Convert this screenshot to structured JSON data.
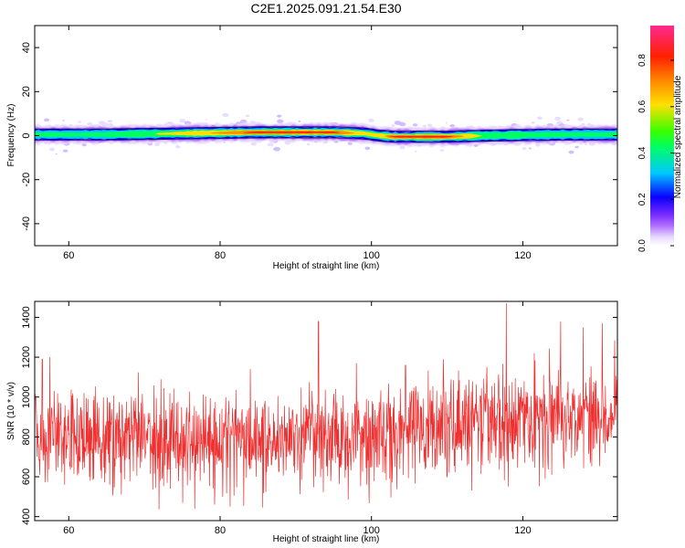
{
  "title": "C2E1.2025.091.21.54.E30",
  "colors": {
    "snr_line": "#ef3030",
    "background": "#ffffff",
    "axes": "#000000",
    "colormap": [
      "#ffffff",
      "#e6d8ff",
      "#b070ff",
      "#7a2cff",
      "#0a00ff",
      "#00c8ff",
      "#00ff60",
      "#38ff00",
      "#ffe000",
      "#ff9000",
      "#ff2000",
      "#ff2a90"
    ]
  },
  "chart_data": [
    {
      "type": "heatmap",
      "title": "C2E1.2025.091.21.54.E30",
      "xlabel": "Height of straight line (km)",
      "ylabel": "Frequency (Hz)",
      "xlim": [
        55.5,
        132.5
      ],
      "ylim": [
        -50,
        50
      ],
      "xticks": [
        60,
        80,
        100,
        120
      ],
      "yticks": [
        40,
        20,
        0,
        -20,
        -40
      ],
      "grid": false,
      "ridge": {
        "x": [
          55.5,
          65,
          75,
          85,
          95,
          99,
          101,
          103,
          110,
          115,
          125,
          132.5
        ],
        "center_hz": [
          0.5,
          0.5,
          1.0,
          1.5,
          1.5,
          1.0,
          0.0,
          -0.5,
          -0.5,
          0.0,
          0.5,
          0.5
        ],
        "amplitude": [
          0.45,
          0.45,
          0.6,
          0.85,
          0.85,
          0.6,
          0.6,
          0.85,
          0.85,
          0.5,
          0.45,
          0.45
        ]
      },
      "colorbar": {
        "label": "Normalized spectral amplitude",
        "range": [
          0,
          0.95
        ],
        "ticks": [
          0.0,
          0.2,
          0.4,
          0.6,
          0.8
        ],
        "tick_labels": [
          "0.0",
          "0.2",
          "0.4",
          "0.6",
          "0.8"
        ]
      }
    },
    {
      "type": "line",
      "xlabel": "Height of straight line (km)",
      "ylabel": "SNR (10 * v/v)",
      "xlim": [
        55.5,
        132.5
      ],
      "ylim": [
        380,
        1480
      ],
      "xticks": [
        60,
        80,
        100,
        120
      ],
      "yticks": [
        400,
        600,
        800,
        1000,
        1200,
        1400
      ],
      "grid": false,
      "series": [
        {
          "x": [
            55.5,
            60,
            65,
            70,
            75,
            80,
            85,
            90,
            95,
            100,
            105,
            110,
            115,
            120,
            125,
            130,
            132.5
          ],
          "mean": [
            800,
            800,
            800,
            800,
            800,
            795,
            800,
            800,
            810,
            820,
            835,
            855,
            870,
            885,
            905,
            930,
            950
          ],
          "low_envelope": [
            560,
            560,
            560,
            560,
            560,
            560,
            560,
            570,
            575,
            585,
            600,
            620,
            640,
            660,
            690,
            720,
            740
          ],
          "high_envelope": [
            1080,
            1080,
            1080,
            1080,
            1080,
            1080,
            1080,
            1085,
            1090,
            1110,
            1120,
            1140,
            1160,
            1180,
            1200,
            1220,
            1240
          ],
          "peaks": [
            [
              56.5,
              1190
            ],
            [
              57.5,
              1200
            ],
            [
              84,
              1140
            ],
            [
              93,
              1380
            ],
            [
              98,
              1170
            ],
            [
              104.5,
              1160
            ],
            [
              109.5,
              1190
            ],
            [
              117.8,
              1470
            ],
            [
              121.5,
              1220
            ],
            [
              125,
              1380
            ],
            [
              128,
              1350
            ],
            [
              130.5,
              1370
            ]
          ]
        }
      ]
    }
  ]
}
